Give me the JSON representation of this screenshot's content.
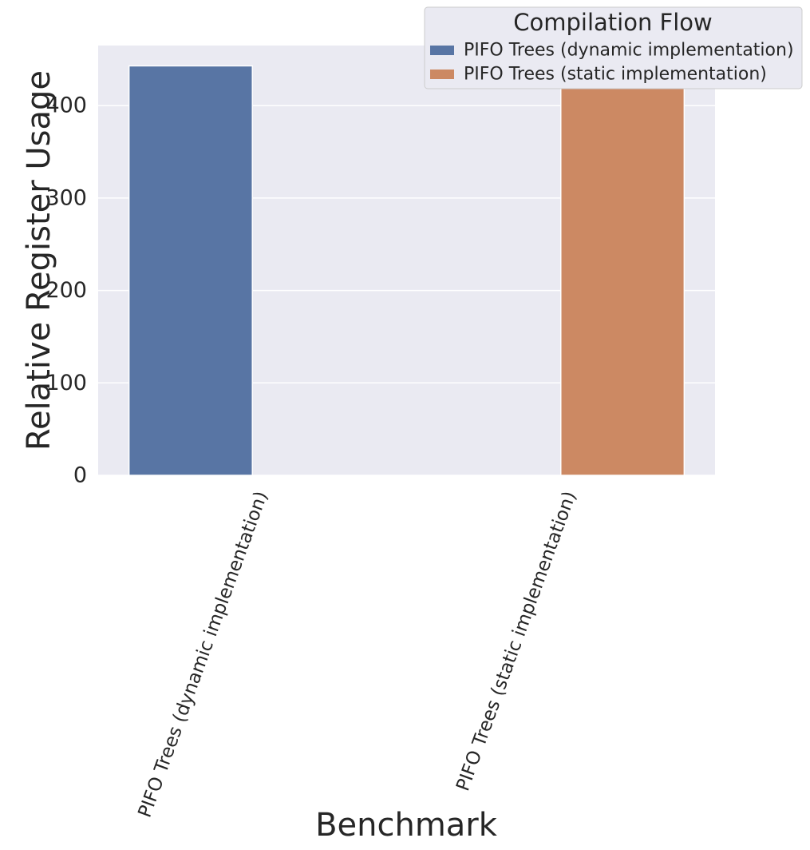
{
  "chart_data": {
    "type": "bar",
    "title": "",
    "xlabel": "Benchmark",
    "ylabel": "Relative Register Usage",
    "categories": [
      "PIFO Trees (dynamic implementation)",
      "PIFO Trees (static implementation)"
    ],
    "series": [
      {
        "name": "PIFO Trees (dynamic implementation)",
        "color": "#5875a4",
        "values": [
          443,
          null
        ]
      },
      {
        "name": "PIFO Trees (static implementation)",
        "color": "#cc8963",
        "values": [
          null,
          433
        ]
      }
    ],
    "ylim": [
      0,
      465
    ],
    "yticks": [
      "0",
      "100",
      "200",
      "300",
      "400"
    ],
    "grid": true,
    "legend": {
      "title": "Compilation Flow",
      "placement": "top-right"
    }
  }
}
